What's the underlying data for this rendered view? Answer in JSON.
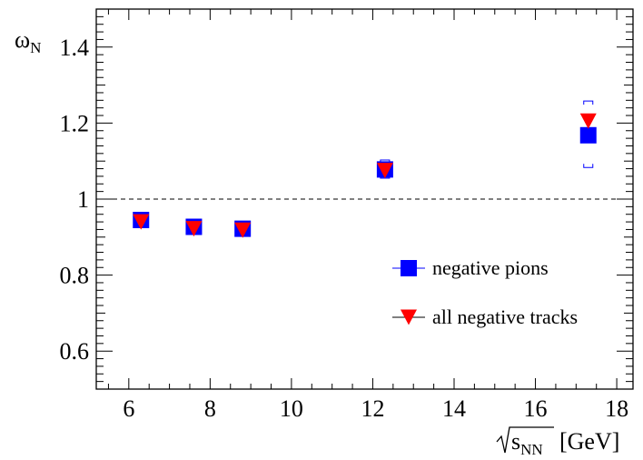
{
  "chart_data": {
    "type": "scatter",
    "xlabel_symbol": "s",
    "xlabel_subscript": "NN",
    "xlabel_unit": "[GeV]",
    "ylabel_symbol": "ω",
    "ylabel_subscript": "N",
    "xlim": [
      5.2,
      18.4
    ],
    "ylim": [
      0.5,
      1.5
    ],
    "x_ticks": [
      6,
      8,
      10,
      12,
      14,
      16,
      18
    ],
    "x_tick_labels": [
      "6",
      "8",
      "10",
      "12",
      "14",
      "16",
      "18"
    ],
    "y_ticks": [
      0.6,
      0.8,
      1.0,
      1.2,
      1.4
    ],
    "y_tick_labels": [
      "0.6",
      "0.8",
      "1",
      "1.2",
      "1.4"
    ],
    "reference_line": {
      "y": 1.0,
      "style": "dashed"
    },
    "grid": false,
    "legend_position": "right",
    "series": [
      {
        "name": "negative pions",
        "marker": "square",
        "color": "#0000ff",
        "points": [
          {
            "x": 6.3,
            "y": 0.945,
            "sys": [
              0.935,
              0.955
            ]
          },
          {
            "x": 7.6,
            "y": 0.927,
            "sys": [
              0.918,
              0.936
            ]
          },
          {
            "x": 8.8,
            "y": 0.922,
            "sys": [
              0.913,
              0.931
            ]
          },
          {
            "x": 12.3,
            "y": 1.078,
            "sys": [
              1.055,
              1.103
            ]
          },
          {
            "x": 17.3,
            "y": 1.168,
            "sys": [
              1.083,
              1.258
            ]
          }
        ]
      },
      {
        "name": "all negative tracks",
        "marker": "triangle-down",
        "color": "#ff0000",
        "points": [
          {
            "x": 6.3,
            "y": 0.94
          },
          {
            "x": 7.6,
            "y": 0.922
          },
          {
            "x": 8.8,
            "y": 0.918
          },
          {
            "x": 12.3,
            "y": 1.075
          },
          {
            "x": 17.3,
            "y": 1.205
          }
        ]
      }
    ]
  }
}
